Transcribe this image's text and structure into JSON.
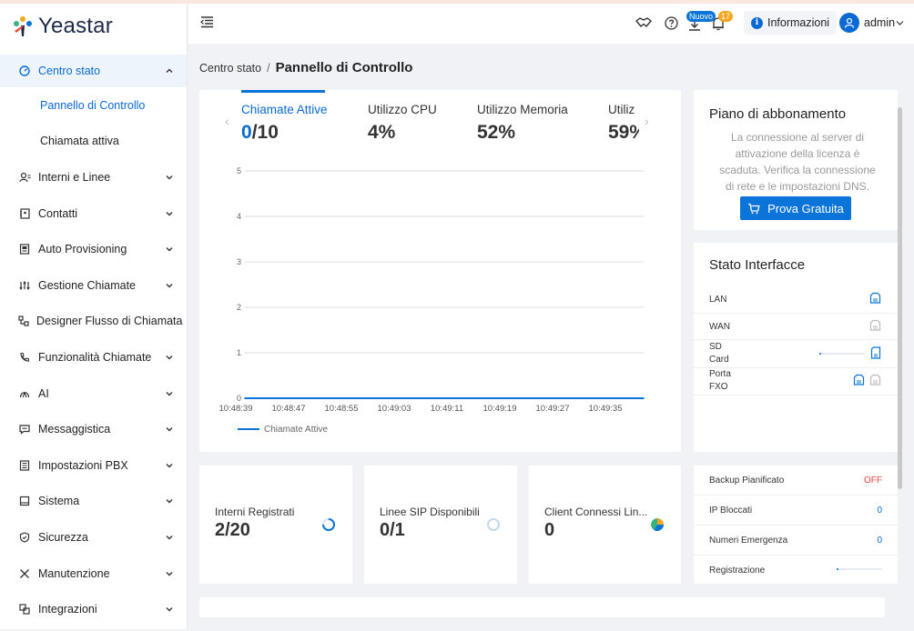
{
  "brand": {
    "name": "Yeastar"
  },
  "sidebar": {
    "items": [
      {
        "label": "Centro stato",
        "icon": "dashboard-icon",
        "expanded": true,
        "children": [
          {
            "label": "Pannello di Controllo"
          },
          {
            "label": "Chiamata attiva"
          }
        ]
      },
      {
        "label": "Interni e Linee",
        "icon": "users-icon"
      },
      {
        "label": "Contatti",
        "icon": "contacts-icon"
      },
      {
        "label": "Auto Provisioning",
        "icon": "provisioning-icon"
      },
      {
        "label": "Gestione Chiamate",
        "icon": "call-control-icon"
      },
      {
        "label": "Designer Flusso di Chiamata",
        "icon": "flow-icon"
      },
      {
        "label": "Funzionalità Chiamate",
        "icon": "phone-icon"
      },
      {
        "label": "AI",
        "icon": "ai-icon"
      },
      {
        "label": "Messaggistica",
        "icon": "message-icon"
      },
      {
        "label": "Impostazioni PBX",
        "icon": "pbx-settings-icon"
      },
      {
        "label": "Sistema",
        "icon": "system-icon"
      },
      {
        "label": "Sicurezza",
        "icon": "shield-icon"
      },
      {
        "label": "Manutenzione",
        "icon": "tools-icon"
      },
      {
        "label": "Integrazioni",
        "icon": "integration-icon"
      }
    ]
  },
  "header": {
    "badge_new": "Nuovo",
    "badge_count": "17",
    "info_label": "Informazioni",
    "user": "admin"
  },
  "breadcrumb": {
    "parent": "Centro stato",
    "current": "Pannello di Controllo"
  },
  "metric_tabs": [
    {
      "label": "Chiamate Attive",
      "value": "0",
      "total": "/10"
    },
    {
      "label": "Utilizzo CPU",
      "value": "4%"
    },
    {
      "label": "Utilizzo Memoria",
      "value": "52%"
    },
    {
      "label": "Utiliz",
      "value": "59%"
    }
  ],
  "chart_data": {
    "type": "line",
    "x": [
      "10:48:39",
      "10:48:47",
      "10:48:55",
      "10:49:03",
      "10:49:11",
      "10:49:19",
      "10:49:27",
      "10:49:35"
    ],
    "series": [
      {
        "name": "Chiamate Attive",
        "values": [
          0,
          0,
          0,
          0,
          0,
          0,
          0,
          0
        ]
      }
    ],
    "yticks": [
      "0",
      "1",
      "2",
      "3",
      "4",
      "5"
    ],
    "ylim": [
      0,
      5
    ],
    "grid": true,
    "legend": "bottom-left",
    "color": "#0a74d8"
  },
  "plan": {
    "title": "Piano di abbonamento",
    "message": "La connessione al server di attivazione della licenza è scaduta. Verifica la connessione di rete e le impostazioni DNS.",
    "button": "Prova Gratuita"
  },
  "interfaces": {
    "title": "Stato Interfacce",
    "rows": [
      {
        "name": "LAN",
        "status": "connected"
      },
      {
        "name": "WAN",
        "status": "disconnected"
      },
      {
        "name": "SD Card",
        "status": "connected",
        "usage": 0.02
      },
      {
        "name": "Porta FXO",
        "status": "mixed"
      }
    ]
  },
  "stats": [
    {
      "label": "Interni Registrati",
      "value": "2/20",
      "ring": "blue"
    },
    {
      "label": "Linee SIP Disponibili",
      "value": "0/1",
      "ring": "empty"
    },
    {
      "label": "Client Connessi Lin...",
      "value": "0",
      "ring": "pie"
    }
  ],
  "system_status": [
    {
      "label": "Backup Pianificato",
      "value": "OFF",
      "color": "#e8483b"
    },
    {
      "label": "IP Bloccati",
      "value": "0",
      "color": "#0a6ad4"
    },
    {
      "label": "Numeri Emergenza",
      "value": "0",
      "color": "#0a6ad4"
    },
    {
      "label": "Registrazione",
      "value": "",
      "usage": 0.03
    }
  ]
}
